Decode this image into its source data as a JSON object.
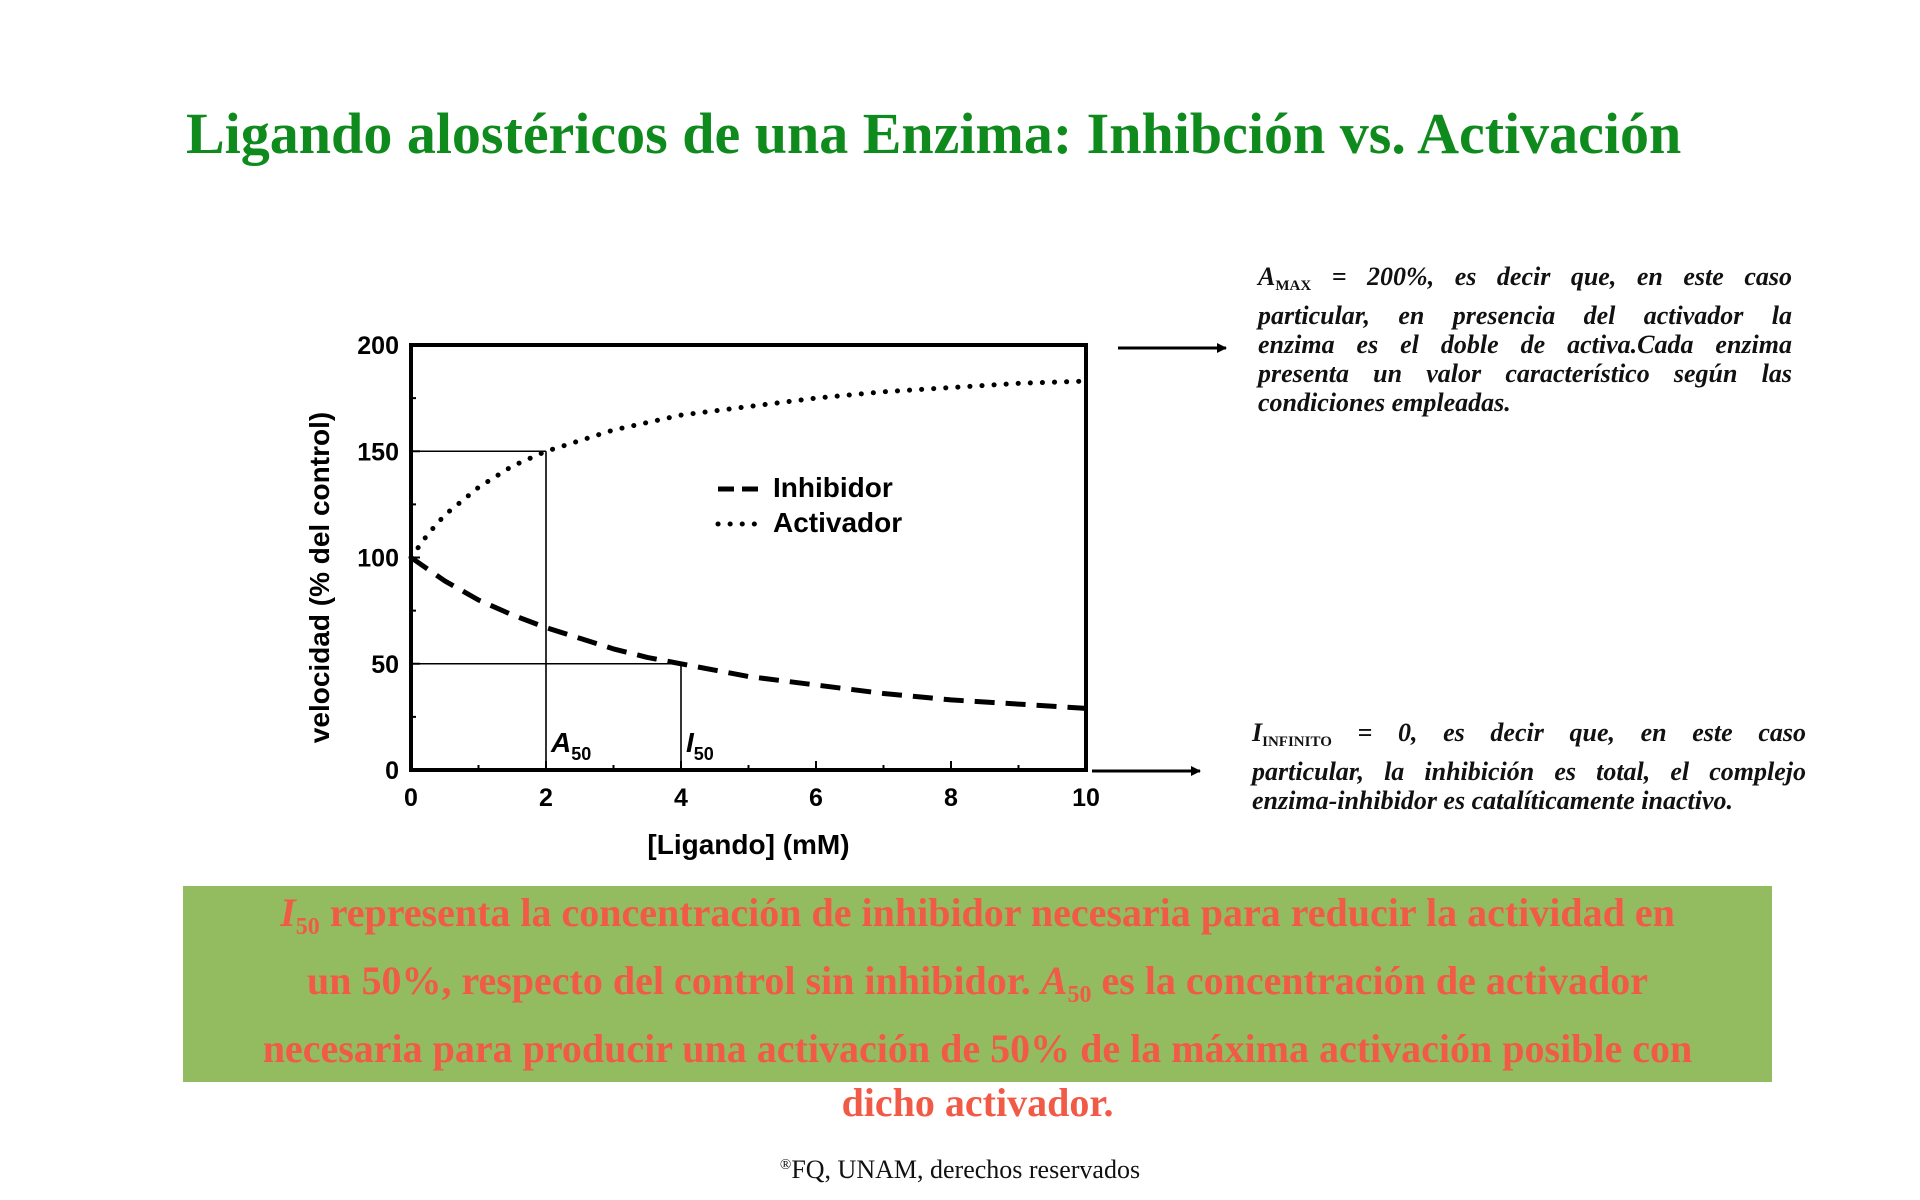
{
  "slide": {
    "title": "Ligando alostéricos de una Enzima: Inhibción vs. Activación",
    "note_amax": {
      "symbol": "A",
      "subscript": "MAX",
      "line1": " = 200%, es decir que, en este caso",
      "line2": "particular, en presencia del activador la",
      "line3": "enzima es el doble de activa.Cada enzima",
      "line4": "presenta un valor característico según las",
      "line5": "condiciones empleadas."
    },
    "note_iinf": {
      "symbol": "I",
      "subscript": "INFINITO",
      "line1": " = 0, es decir que, en este caso",
      "line2": "particular, la inhibición es total, el complejo",
      "line3": "enzima-inhibidor es catalíticamente inactivo."
    },
    "summary": {
      "i_symbol": "I",
      "i_sub": "50",
      "part1": " representa la concentración de inhibidor necesaria para reducir la actividad en",
      "part2": "un 50%, respecto del control sin inhibidor. ",
      "a_symbol": "A",
      "a_sub": "50",
      "part3": " es la concentración de activador",
      "part4": "necesaria para producir una activación de 50% de la máxima activación posible con",
      "part5": "dicho activador."
    },
    "footer": {
      "mark": "®",
      "text": "FQ, UNAM, derechos reservados"
    }
  },
  "chart_data": {
    "type": "line",
    "xlabel": "[Ligando] (mM)",
    "ylabel": "velocidad (% del control)",
    "xlim": [
      0,
      10
    ],
    "ylim": [
      0,
      200
    ],
    "xticks": [
      0,
      2,
      4,
      6,
      8,
      10
    ],
    "yticks": [
      0,
      50,
      100,
      150,
      200
    ],
    "grid": false,
    "legend_position": "center",
    "series": [
      {
        "name": "Inhibidor",
        "style": "dashed",
        "x": [
          0,
          0.5,
          1,
          1.5,
          2,
          2.5,
          3,
          3.5,
          4,
          5,
          6,
          7,
          8,
          9,
          10
        ],
        "y": [
          100,
          89,
          80,
          73,
          67,
          62,
          57,
          53,
          50,
          44,
          40,
          36,
          33,
          31,
          29
        ]
      },
      {
        "name": "Activador",
        "style": "dotted",
        "x": [
          0,
          0.25,
          0.5,
          1,
          1.5,
          2,
          3,
          4,
          5,
          6,
          7,
          8,
          9,
          10
        ],
        "y": [
          100,
          111,
          120,
          133,
          143,
          150,
          160,
          167,
          171,
          175,
          178,
          180,
          182,
          183
        ]
      }
    ],
    "annotations": [
      {
        "label": "A",
        "sub": "50",
        "x": 2,
        "y": 150
      },
      {
        "label": "I",
        "sub": "50",
        "x": 4,
        "y": 50
      }
    ]
  }
}
